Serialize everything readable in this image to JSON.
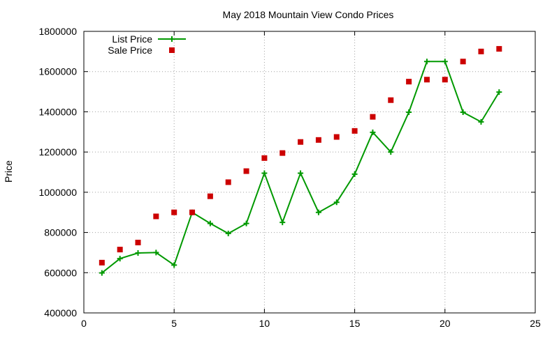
{
  "chart_data": {
    "type": "scatter",
    "title": "May 2018 Mountain View Condo Prices",
    "xlabel": "",
    "ylabel": "Price",
    "xlim": [
      0,
      25
    ],
    "ylim": [
      400000,
      1800000
    ],
    "xticks": [
      0,
      5,
      10,
      15,
      20,
      25
    ],
    "yticks": [
      400000,
      600000,
      800000,
      1000000,
      1200000,
      1400000,
      1600000,
      1800000
    ],
    "grid": true,
    "legend_position": "top-left",
    "series": [
      {
        "name": "List Price",
        "style": "line-with-plus-markers",
        "color": "#009900",
        "x": [
          1,
          2,
          3,
          4,
          5,
          6,
          7,
          8,
          9,
          10,
          11,
          12,
          13,
          14,
          15,
          16,
          17,
          18,
          19,
          20,
          21,
          22,
          23
        ],
        "y": [
          599000,
          670000,
          698000,
          700000,
          638000,
          900000,
          845000,
          795000,
          845000,
          1095000,
          850000,
          1095000,
          900000,
          950000,
          1090000,
          1298000,
          1200000,
          1398000,
          1650000,
          1650000,
          1398000,
          1350000,
          1498000
        ]
      },
      {
        "name": "Sale Price",
        "style": "square-markers",
        "color": "#cc0000",
        "x": [
          1,
          2,
          3,
          4,
          5,
          6,
          7,
          8,
          9,
          10,
          11,
          12,
          13,
          14,
          15,
          16,
          17,
          18,
          19,
          20,
          21,
          22,
          23
        ],
        "y": [
          650000,
          715000,
          750000,
          880000,
          900000,
          900000,
          980000,
          1050000,
          1105000,
          1170000,
          1195000,
          1250000,
          1260000,
          1275000,
          1305000,
          1375000,
          1458000,
          1550000,
          1560000,
          1560000,
          1650000,
          1700000,
          1713000
        ]
      }
    ]
  }
}
